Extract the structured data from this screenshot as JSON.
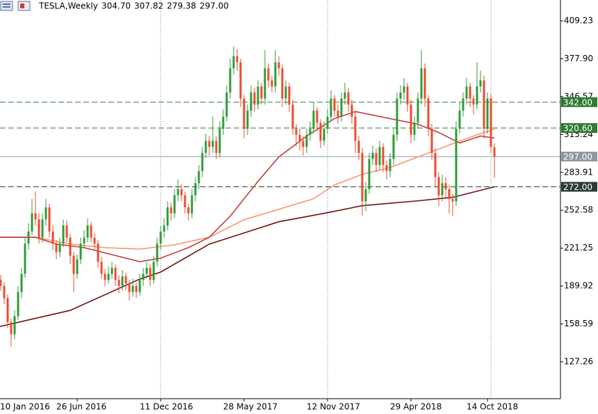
{
  "chart_data": {
    "type": "candlestick",
    "title": "TESLA,Weekly",
    "header_ohlc": [
      {
        "value": 304.7,
        "label": "304.70"
      },
      307.82,
      279.38,
      {
        "value": 297,
        "label": "297.00"
      }
    ],
    "up_color": "#2f9a3a",
    "down_color": "#ee4a2c",
    "categories": [
      "10 Jan 2016",
      null,
      null,
      null,
      null,
      null,
      null,
      null,
      null,
      null,
      null,
      null,
      null,
      null,
      null,
      null,
      null,
      null,
      null,
      null,
      null,
      null,
      null,
      null,
      "26 Jun 2016",
      null,
      null,
      null,
      null,
      null,
      null,
      null,
      null,
      null,
      null,
      null,
      null,
      null,
      null,
      null,
      null,
      null,
      null,
      null,
      null,
      null,
      null,
      null,
      "11 Dec 2016",
      null,
      null,
      null,
      null,
      null,
      null,
      null,
      null,
      null,
      null,
      null,
      null,
      null,
      null,
      null,
      null,
      null,
      null,
      null,
      null,
      null,
      null,
      null,
      "28 May 2017",
      null,
      null,
      null,
      null,
      null,
      null,
      null,
      null,
      null,
      null,
      null,
      null,
      null,
      null,
      null,
      null,
      null,
      null,
      null,
      null,
      null,
      null,
      null,
      "12 Nov 2017",
      null,
      null,
      null,
      null,
      null,
      null,
      null,
      null,
      null,
      null,
      null,
      null,
      null,
      null,
      null,
      null,
      null,
      null,
      null,
      null,
      null,
      null,
      null,
      "29 Apr 2018",
      null,
      null,
      null,
      null,
      null,
      null,
      null,
      null,
      null,
      null,
      null,
      null,
      null,
      null,
      null,
      null,
      null,
      null,
      null,
      null,
      null,
      "14 Oct 2018",
      null,
      null
    ],
    "ohlc": [
      [
        205,
        210,
        193,
        200
      ],
      [
        200,
        204,
        190,
        195
      ],
      [
        195,
        199,
        186,
        190
      ],
      [
        190,
        193,
        175,
        180
      ],
      [
        180,
        183,
        155,
        160
      ],
      [
        160,
        163,
        140,
        150
      ],
      [
        150,
        170,
        146,
        165
      ],
      [
        165,
        190,
        162,
        185
      ],
      [
        185,
        205,
        180,
        200
      ],
      [
        200,
        230,
        197,
        225
      ],
      [
        225,
        242,
        220,
        235
      ],
      [
        235,
        262,
        232,
        250
      ],
      [
        250,
        268,
        240,
        245
      ],
      [
        245,
        250,
        225,
        230
      ],
      [
        230,
        250,
        226,
        245
      ],
      [
        245,
        262,
        240,
        255
      ],
      [
        255,
        258,
        230,
        235
      ],
      [
        235,
        240,
        220,
        225
      ],
      [
        225,
        228,
        212,
        218
      ],
      [
        218,
        230,
        214,
        225
      ],
      [
        225,
        245,
        222,
        240
      ],
      [
        240,
        244,
        226,
        230
      ],
      [
        230,
        233,
        208,
        215
      ],
      [
        215,
        218,
        185,
        200
      ],
      [
        200,
        216,
        196,
        212
      ],
      [
        212,
        230,
        208,
        225
      ],
      [
        225,
        236,
        221,
        230
      ],
      [
        230,
        246,
        226,
        240
      ],
      [
        240,
        243,
        226,
        230
      ],
      [
        230,
        234,
        220,
        225
      ],
      [
        225,
        228,
        205,
        210
      ],
      [
        210,
        214,
        196,
        200
      ],
      [
        200,
        204,
        190,
        195
      ],
      [
        195,
        206,
        192,
        200
      ],
      [
        200,
        210,
        196,
        205
      ],
      [
        205,
        208,
        190,
        195
      ],
      [
        195,
        199,
        184,
        190
      ],
      [
        190,
        203,
        186,
        198
      ],
      [
        198,
        201,
        186,
        192
      ],
      [
        192,
        195,
        178,
        185
      ],
      [
        185,
        196,
        181,
        190
      ],
      [
        190,
        193,
        180,
        185
      ],
      [
        185,
        200,
        182,
        195
      ],
      [
        195,
        205,
        190,
        200
      ],
      [
        200,
        210,
        196,
        205
      ],
      [
        205,
        208,
        190,
        195
      ],
      [
        195,
        215,
        192,
        210
      ],
      [
        210,
        230,
        206,
        225
      ],
      [
        225,
        240,
        220,
        235
      ],
      [
        235,
        246,
        230,
        240
      ],
      [
        240,
        260,
        236,
        255
      ],
      [
        255,
        259,
        244,
        250
      ],
      [
        250,
        270,
        246,
        265
      ],
      [
        265,
        278,
        260,
        270
      ],
      [
        270,
        274,
        260,
        265
      ],
      [
        265,
        268,
        250,
        255
      ],
      [
        255,
        258,
        244,
        250
      ],
      [
        250,
        270,
        246,
        265
      ],
      [
        265,
        280,
        260,
        275
      ],
      [
        275,
        290,
        270,
        285
      ],
      [
        285,
        305,
        280,
        300
      ],
      [
        300,
        316,
        296,
        310
      ],
      [
        310,
        314,
        298,
        305
      ],
      [
        305,
        330,
        300,
        310
      ],
      [
        310,
        314,
        295,
        300
      ],
      [
        300,
        326,
        296,
        320
      ],
      [
        320,
        336,
        315,
        330
      ],
      [
        330,
        356,
        326,
        350
      ],
      [
        350,
        378,
        345,
        370
      ],
      [
        370,
        388,
        365,
        380
      ],
      [
        380,
        386,
        368,
        375
      ],
      [
        375,
        378,
        338,
        345
      ],
      [
        345,
        348,
        312,
        320
      ],
      [
        320,
        340,
        315,
        335
      ],
      [
        335,
        356,
        330,
        350
      ],
      [
        350,
        354,
        334,
        340
      ],
      [
        340,
        360,
        336,
        355
      ],
      [
        355,
        358,
        340,
        345
      ],
      [
        345,
        385,
        340,
        370
      ],
      [
        370,
        374,
        354,
        360
      ],
      [
        360,
        364,
        350,
        355
      ],
      [
        355,
        385,
        350,
        375
      ],
      [
        375,
        380,
        364,
        370
      ],
      [
        370,
        373,
        338,
        345
      ],
      [
        345,
        360,
        340,
        355
      ],
      [
        355,
        358,
        334,
        340
      ],
      [
        340,
        344,
        315,
        320
      ],
      [
        320,
        324,
        306,
        315
      ],
      [
        315,
        320,
        302,
        310
      ],
      [
        310,
        314,
        298,
        305
      ],
      [
        305,
        320,
        300,
        315
      ],
      [
        315,
        326,
        310,
        320
      ],
      [
        320,
        342,
        316,
        335
      ],
      [
        335,
        338,
        318,
        325
      ],
      [
        325,
        328,
        304,
        310
      ],
      [
        310,
        326,
        306,
        320
      ],
      [
        320,
        336,
        316,
        330
      ],
      [
        330,
        352,
        326,
        345
      ],
      [
        345,
        348,
        330,
        335
      ],
      [
        335,
        340,
        324,
        330
      ],
      [
        330,
        350,
        326,
        345
      ],
      [
        345,
        358,
        340,
        350
      ],
      [
        350,
        354,
        334,
        340
      ],
      [
        340,
        344,
        324,
        330
      ],
      [
        330,
        334,
        300,
        310
      ],
      [
        310,
        314,
        294,
        300
      ],
      [
        300,
        304,
        248,
        260
      ],
      [
        260,
        276,
        252,
        270
      ],
      [
        270,
        300,
        266,
        295
      ],
      [
        295,
        306,
        290,
        300
      ],
      [
        300,
        304,
        284,
        290
      ],
      [
        290,
        310,
        286,
        305
      ],
      [
        305,
        308,
        284,
        290
      ],
      [
        290,
        294,
        278,
        285
      ],
      [
        285,
        300,
        280,
        295
      ],
      [
        295,
        320,
        290,
        315
      ],
      [
        315,
        350,
        310,
        345
      ],
      [
        345,
        356,
        340,
        350
      ],
      [
        350,
        362,
        344,
        355
      ],
      [
        355,
        358,
        334,
        340
      ],
      [
        340,
        344,
        308,
        315
      ],
      [
        315,
        330,
        310,
        325
      ],
      [
        325,
        350,
        320,
        345
      ],
      [
        345,
        385,
        340,
        370
      ],
      [
        370,
        374,
        338,
        345
      ],
      [
        345,
        348,
        314,
        320
      ],
      [
        320,
        324,
        294,
        300
      ],
      [
        300,
        304,
        272,
        280
      ],
      [
        280,
        284,
        256,
        265
      ],
      [
        265,
        282,
        260,
        275
      ],
      [
        275,
        280,
        262,
        270
      ],
      [
        270,
        274,
        250,
        262
      ],
      [
        262,
        266,
        248,
        260
      ],
      [
        260,
        326,
        256,
        320
      ],
      [
        320,
        342,
        316,
        335
      ],
      [
        335,
        350,
        330,
        345
      ],
      [
        345,
        362,
        340,
        355
      ],
      [
        355,
        358,
        338,
        345
      ],
      [
        345,
        348,
        332,
        340
      ],
      [
        340,
        375,
        336,
        355
      ],
      [
        355,
        368,
        350,
        360
      ],
      [
        360,
        364,
        312,
        320
      ],
      [
        320,
        350,
        316,
        345
      ],
      [
        345,
        349,
        300,
        305
      ],
      [
        304.7,
        307.82,
        279.38,
        297
      ]
    ],
    "series": [
      {
        "color": "#6e0f0f",
        "x": [
          0,
          22,
          42,
          48,
          62,
          82,
          96,
          106,
          122,
          132,
          144
        ],
        "values": [
          155.3,
          169.8,
          195.7,
          201.5,
          224.6,
          243.1,
          250.6,
          256.4,
          260.4,
          263.3,
          272
        ]
      },
      {
        "color": "#f39a6e",
        "x": [
          0,
          12,
          22,
          32,
          42,
          52,
          62,
          72,
          82,
          92,
          98,
          106,
          114,
          122,
          130,
          138,
          144
        ],
        "values": [
          230.3,
          230.3,
          224.6,
          221.7,
          220.5,
          224,
          230.3,
          244.8,
          253.4,
          262.1,
          273.6,
          282.3,
          288,
          296.7,
          305.4,
          314,
          319.8
        ]
      },
      {
        "color": "#c43a3a",
        "x": [
          0,
          12,
          18,
          26,
          34,
          42,
          48,
          56,
          62,
          68,
          76,
          82,
          90,
          98,
          104,
          114,
          122,
          128,
          134,
          140,
          144
        ],
        "values": [
          230.3,
          230.3,
          224.6,
          221.7,
          215.9,
          210.1,
          213,
          221.7,
          230.3,
          247.7,
          276.5,
          296.7,
          314,
          328.4,
          334.2,
          328.4,
          323.8,
          316.9,
          308.2,
          314,
          312.3
        ]
      }
    ],
    "levels": [
      {
        "value": 342,
        "label": "342.00",
        "color": "#2e7d32",
        "dashed": true
      },
      {
        "value": 320.6,
        "label": "320.60",
        "color": "#2e7d32",
        "dashed": true
      },
      {
        "value": 297,
        "label": "297.00",
        "color": "#8c99a4",
        "dashed": false
      },
      {
        "value": 272,
        "label": "272.00",
        "color": "#2c3b33",
        "dashed": true
      }
    ],
    "ylim": [
      96.77,
      426.49
    ],
    "yticks": [
      409.23,
      {
        "value": 377.9,
        "label": "377.90"
      },
      346.57,
      315.24,
      283.91,
      252.58,
      221.25,
      189.92,
      158.59,
      127.26
    ]
  }
}
